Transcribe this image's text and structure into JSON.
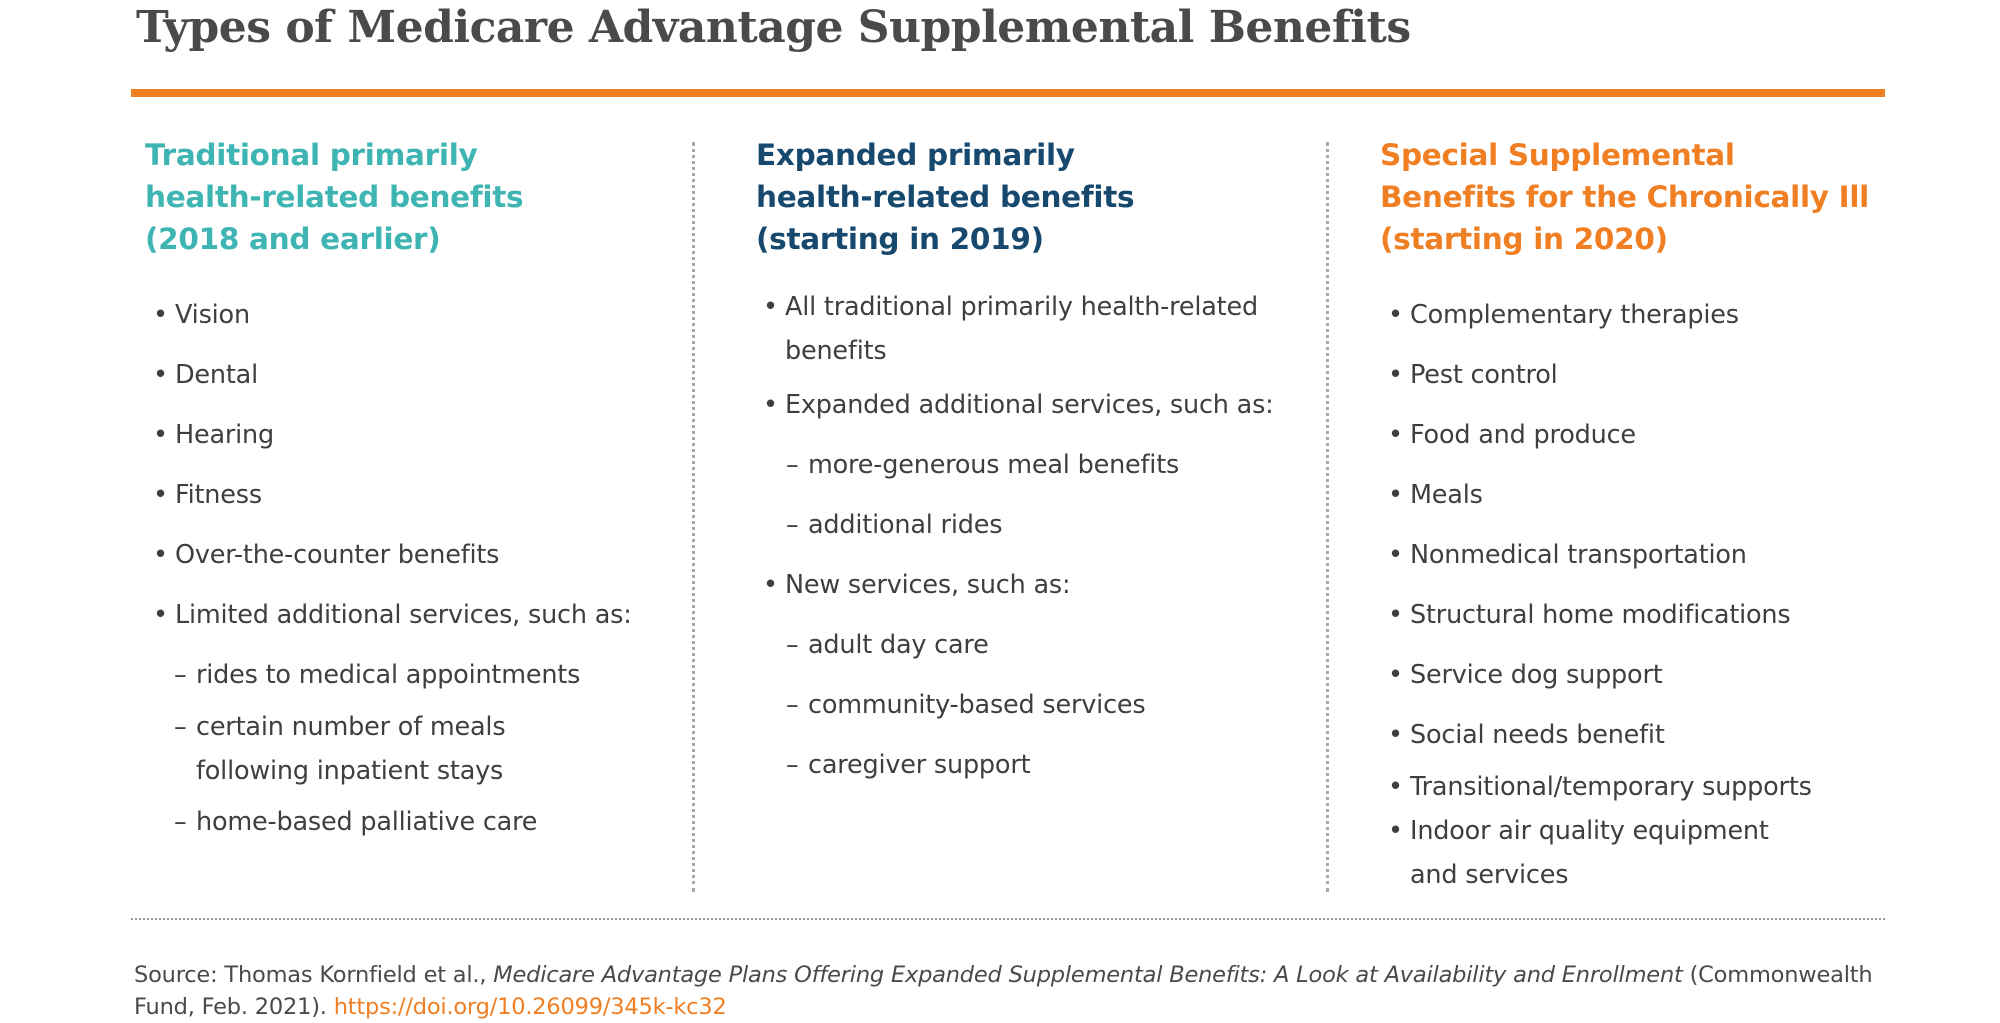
{
  "title": "Types of Medicare Advantage Supplemental Benefits",
  "colors": {
    "accent_orange": "#f07f23",
    "teal": "#3fb5b3",
    "navy": "#17496f",
    "text": "#3f3f3f"
  },
  "columns": [
    {
      "heading": "Traditional primarily\nhealth-related benefits\n(2018 and earlier)",
      "items": [
        {
          "marker": "•",
          "text": "Vision"
        },
        {
          "marker": "•",
          "text": "Dental"
        },
        {
          "marker": "•",
          "text": "Hearing"
        },
        {
          "marker": "•",
          "text": "Fitness"
        },
        {
          "marker": "•",
          "text": "Over-the-counter benefits"
        },
        {
          "marker": "•",
          "text": "Limited additional services, such as:"
        },
        {
          "marker": "–",
          "text": "rides to medical appointments"
        },
        {
          "marker": "–",
          "text": "certain number of meals\nfollowing inpatient stays"
        },
        {
          "marker": "–",
          "text": "home-based palliative care"
        }
      ]
    },
    {
      "heading": "Expanded primarily\nhealth-related benefits\n(starting in 2019)",
      "items": [
        {
          "marker": "•",
          "text": "All traditional primarily health-related\nbenefits"
        },
        {
          "marker": "•",
          "text": "Expanded additional services, such as:"
        },
        {
          "marker": "–",
          "text": "more-generous meal benefits"
        },
        {
          "marker": "–",
          "text": "additional rides"
        },
        {
          "marker": "•",
          "text": "New services, such as:"
        },
        {
          "marker": "–",
          "text": "adult day care"
        },
        {
          "marker": "–",
          "text": "community-based services"
        },
        {
          "marker": "–",
          "text": "caregiver support"
        }
      ]
    },
    {
      "heading": "Special Supplemental\nBenefits for the Chronically Ill\n(starting in 2020)",
      "items": [
        {
          "marker": "•",
          "text": "Complementary therapies"
        },
        {
          "marker": "•",
          "text": "Pest control"
        },
        {
          "marker": "•",
          "text": "Food and produce"
        },
        {
          "marker": "•",
          "text": "Meals"
        },
        {
          "marker": "•",
          "text": "Nonmedical transportation"
        },
        {
          "marker": "•",
          "text": "Structural home modifications"
        },
        {
          "marker": "•",
          "text": "Service dog support"
        },
        {
          "marker": "•",
          "text": "Social needs benefit"
        },
        {
          "marker": "•",
          "text": "Transitional/temporary supports"
        },
        {
          "marker": "•",
          "text": "Indoor air quality equipment\nand services"
        }
      ]
    }
  ],
  "source": {
    "prefix": "Source: Thomas Kornfield et al., ",
    "italic": "Medicare Advantage Plans Offering Expanded Supplemental Benefits: A Look at Availability and Enrollment",
    "suffix": " (Commonwealth Fund, Feb. 2021). ",
    "link": "https://doi.org/10.26099/345k-kc32"
  }
}
